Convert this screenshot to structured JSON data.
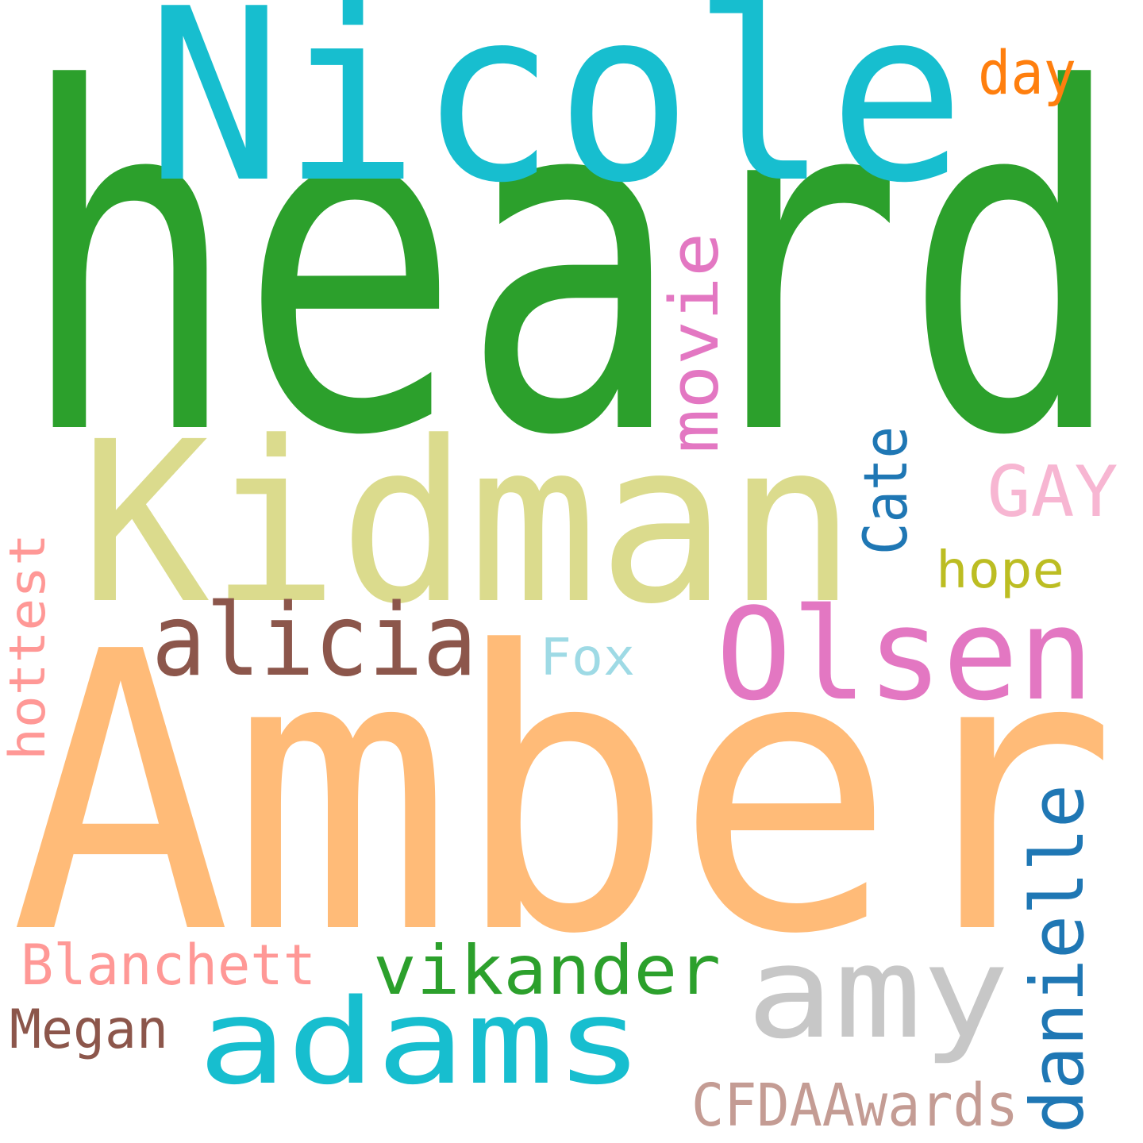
{
  "words": [
    {
      "id": "heard",
      "text": "heard",
      "color": "#2ca02c"
    },
    {
      "id": "nicole",
      "text": "Nicole",
      "color": "#17becf"
    },
    {
      "id": "kidman",
      "text": "Kidman",
      "color": "#dbdb8d"
    },
    {
      "id": "amber",
      "text": "Amber",
      "color": "#ffbb78"
    },
    {
      "id": "olsen",
      "text": "Olsen",
      "color": "#e377c2"
    },
    {
      "id": "alicia",
      "text": "alicia",
      "color": "#8c564b"
    },
    {
      "id": "movie",
      "text": "movie",
      "color": "#e377c2"
    },
    {
      "id": "day",
      "text": "day",
      "color": "#ff7f0e"
    },
    {
      "id": "gay",
      "text": "GAY",
      "color": "#f7b6d2"
    },
    {
      "id": "cate",
      "text": "Cate",
      "color": "#1f77b4"
    },
    {
      "id": "hope",
      "text": "hope",
      "color": "#bcbd22"
    },
    {
      "id": "fox",
      "text": "Fox",
      "color": "#9edae5"
    },
    {
      "id": "hottest",
      "text": "hottest",
      "color": "#ff9896"
    },
    {
      "id": "amy",
      "text": "amy",
      "color": "#c7c7c7"
    },
    {
      "id": "danielle",
      "text": "danielle",
      "color": "#1f77b4"
    },
    {
      "id": "blanchett",
      "text": "Blanchett",
      "color": "#ff9896"
    },
    {
      "id": "vikander",
      "text": "vikander",
      "color": "#2ca02c"
    },
    {
      "id": "adams",
      "text": "adams",
      "color": "#17becf"
    },
    {
      "id": "megan",
      "text": "Megan",
      "color": "#8c564b"
    },
    {
      "id": "cfdaawards",
      "text": "CFDAAwards",
      "color": "#c49c94"
    }
  ]
}
